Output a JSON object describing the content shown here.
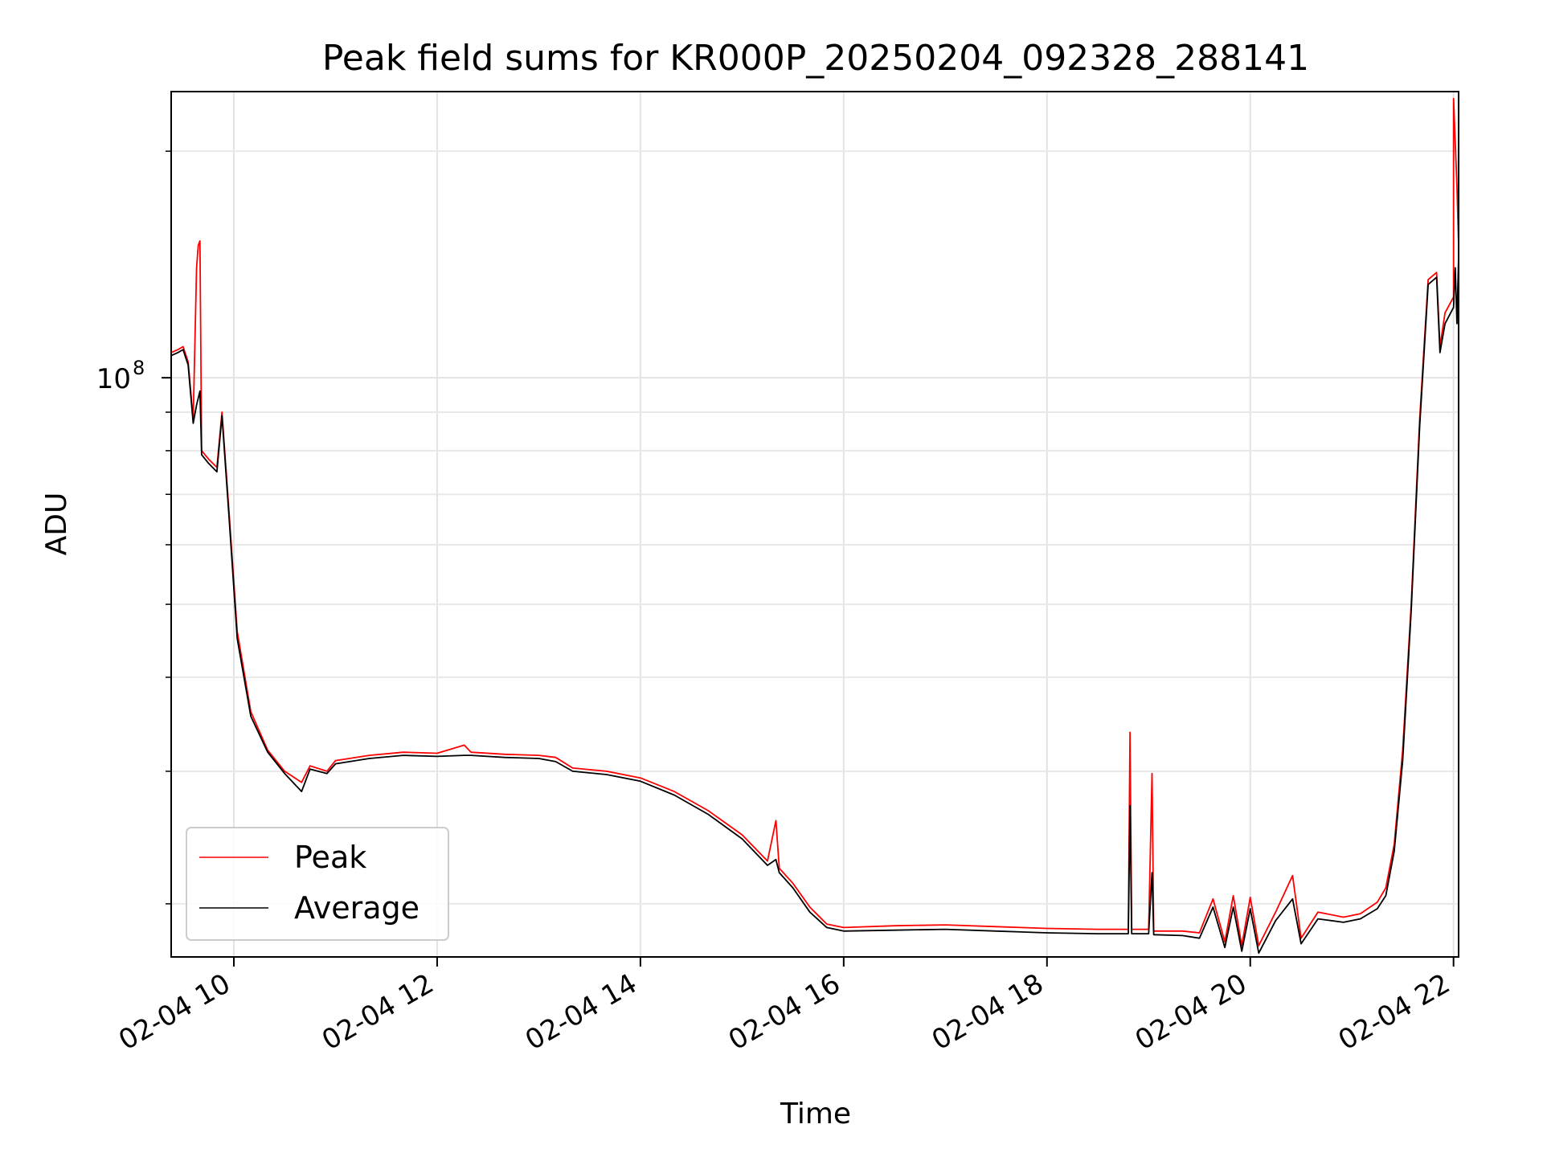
{
  "chart_data": {
    "type": "line",
    "title": "Peak field sums for KR000P_20250204_092328_288141",
    "xlabel": "Time",
    "ylabel": "ADU",
    "x_scale": "time",
    "y_scale": "log",
    "xlim": [
      "2025-02-04 09:23",
      "2025-02-04 22:03"
    ],
    "ylim": [
      17000000,
      240000000
    ],
    "x_ticks": [
      {
        "t": "2025-02-04 10:00",
        "label": "02-04 10"
      },
      {
        "t": "2025-02-04 12:00",
        "label": "02-04 12"
      },
      {
        "t": "2025-02-04 14:00",
        "label": "02-04 14"
      },
      {
        "t": "2025-02-04 16:00",
        "label": "02-04 16"
      },
      {
        "t": "2025-02-04 18:00",
        "label": "02-04 18"
      },
      {
        "t": "2025-02-04 20:00",
        "label": "02-04 20"
      },
      {
        "t": "2025-02-04 22:00",
        "label": "02-04 22"
      }
    ],
    "y_major_ticks": [
      {
        "value": 100000000,
        "label": "10",
        "exponent": "8"
      }
    ],
    "y_minor_ticks": [
      20000000,
      30000000,
      40000000,
      50000000,
      60000000,
      70000000,
      80000000,
      90000000,
      200000000
    ],
    "grid": true,
    "legend": "lower-left",
    "series": [
      {
        "name": "Peak",
        "color": "#ff0000",
        "points": [
          [
            "2025-02-04 09:23",
            108000000
          ],
          [
            "2025-02-04 09:27",
            109000000
          ],
          [
            "2025-02-04 09:30",
            110000000
          ],
          [
            "2025-02-04 09:33",
            105000000
          ],
          [
            "2025-02-04 09:36",
            88000000
          ],
          [
            "2025-02-04 09:38",
            140000000
          ],
          [
            "2025-02-04 09:39",
            150000000
          ],
          [
            "2025-02-04 09:40",
            152000000
          ],
          [
            "2025-02-04 09:41",
            80000000
          ],
          [
            "2025-02-04 09:45",
            78000000
          ],
          [
            "2025-02-04 09:50",
            76000000
          ],
          [
            "2025-02-04 09:53",
            90000000
          ],
          [
            "2025-02-04 09:57",
            67000000
          ],
          [
            "2025-02-04 10:02",
            46000000
          ],
          [
            "2025-02-04 10:10",
            36000000
          ],
          [
            "2025-02-04 10:20",
            32000000
          ],
          [
            "2025-02-04 10:30",
            30000000
          ],
          [
            "2025-02-04 10:40",
            29000000
          ],
          [
            "2025-02-04 10:45",
            30500000
          ],
          [
            "2025-02-04 10:55",
            30000000
          ],
          [
            "2025-02-04 11:00",
            31000000
          ],
          [
            "2025-02-04 11:20",
            31500000
          ],
          [
            "2025-02-04 11:40",
            31800000
          ],
          [
            "2025-02-04 12:00",
            31700000
          ],
          [
            "2025-02-04 12:16",
            32500000
          ],
          [
            "2025-02-04 12:20",
            31800000
          ],
          [
            "2025-02-04 12:40",
            31600000
          ],
          [
            "2025-02-04 13:00",
            31500000
          ],
          [
            "2025-02-04 13:10",
            31300000
          ],
          [
            "2025-02-04 13:20",
            30300000
          ],
          [
            "2025-02-04 13:40",
            30000000
          ],
          [
            "2025-02-04 14:00",
            29400000
          ],
          [
            "2025-02-04 14:20",
            28200000
          ],
          [
            "2025-02-04 14:40",
            26600000
          ],
          [
            "2025-02-04 15:00",
            24700000
          ],
          [
            "2025-02-04 15:15",
            22800000
          ],
          [
            "2025-02-04 15:20",
            25800000
          ],
          [
            "2025-02-04 15:22",
            22300000
          ],
          [
            "2025-02-04 15:30",
            21300000
          ],
          [
            "2025-02-04 15:40",
            19800000
          ],
          [
            "2025-02-04 15:50",
            18800000
          ],
          [
            "2025-02-04 16:00",
            18600000
          ],
          [
            "2025-02-04 16:30",
            18700000
          ],
          [
            "2025-02-04 17:00",
            18750000
          ],
          [
            "2025-02-04 17:30",
            18650000
          ],
          [
            "2025-02-04 18:00",
            18550000
          ],
          [
            "2025-02-04 18:30",
            18500000
          ],
          [
            "2025-02-04 18:48",
            18500000
          ],
          [
            "2025-02-04 18:49",
            33800000
          ],
          [
            "2025-02-04 18:50",
            18500000
          ],
          [
            "2025-02-04 19:00",
            18500000
          ],
          [
            "2025-02-04 19:02",
            29800000
          ],
          [
            "2025-02-04 19:03",
            18400000
          ],
          [
            "2025-02-04 19:20",
            18400000
          ],
          [
            "2025-02-04 19:30",
            18300000
          ],
          [
            "2025-02-04 19:38",
            20300000
          ],
          [
            "2025-02-04 19:45",
            17800000
          ],
          [
            "2025-02-04 19:50",
            20500000
          ],
          [
            "2025-02-04 19:55",
            17600000
          ],
          [
            "2025-02-04 20:00",
            20400000
          ],
          [
            "2025-02-04 20:05",
            17600000
          ],
          [
            "2025-02-04 20:15",
            19500000
          ],
          [
            "2025-02-04 20:25",
            21800000
          ],
          [
            "2025-02-04 20:30",
            18000000
          ],
          [
            "2025-02-04 20:40",
            19500000
          ],
          [
            "2025-02-04 20:55",
            19200000
          ],
          [
            "2025-02-04 21:05",
            19400000
          ],
          [
            "2025-02-04 21:15",
            20100000
          ],
          [
            "2025-02-04 21:20",
            21000000
          ],
          [
            "2025-02-04 21:25",
            24000000
          ],
          [
            "2025-02-04 21:30",
            32000000
          ],
          [
            "2025-02-04 21:35",
            50000000
          ],
          [
            "2025-02-04 21:40",
            88000000
          ],
          [
            "2025-02-04 21:45",
            135000000
          ],
          [
            "2025-02-04 21:50",
            138000000
          ],
          [
            "2025-02-04 21:52",
            110000000
          ],
          [
            "2025-02-04 21:55",
            122000000
          ],
          [
            "2025-02-04 22:00",
            128000000
          ],
          [
            "2025-02-04 22:00",
            235000000
          ],
          [
            "2025-02-04 22:02",
            180000000
          ],
          [
            "2025-02-04 22:03",
            150000000
          ]
        ]
      },
      {
        "name": "Average",
        "color": "#000000",
        "points": [
          [
            "2025-02-04 09:23",
            107000000
          ],
          [
            "2025-02-04 09:27",
            108000000
          ],
          [
            "2025-02-04 09:30",
            109000000
          ],
          [
            "2025-02-04 09:33",
            104000000
          ],
          [
            "2025-02-04 09:36",
            87000000
          ],
          [
            "2025-02-04 09:38",
            92000000
          ],
          [
            "2025-02-04 09:40",
            96000000
          ],
          [
            "2025-02-04 09:41",
            79000000
          ],
          [
            "2025-02-04 09:45",
            77000000
          ],
          [
            "2025-02-04 09:50",
            75000000
          ],
          [
            "2025-02-04 09:53",
            89000000
          ],
          [
            "2025-02-04 09:57",
            66000000
          ],
          [
            "2025-02-04 10:02",
            45000000
          ],
          [
            "2025-02-04 10:10",
            35500000
          ],
          [
            "2025-02-04 10:20",
            31800000
          ],
          [
            "2025-02-04 10:30",
            29800000
          ],
          [
            "2025-02-04 10:40",
            28200000
          ],
          [
            "2025-02-04 10:45",
            30200000
          ],
          [
            "2025-02-04 10:55",
            29800000
          ],
          [
            "2025-02-04 11:00",
            30700000
          ],
          [
            "2025-02-04 11:20",
            31200000
          ],
          [
            "2025-02-04 11:40",
            31500000
          ],
          [
            "2025-02-04 12:00",
            31400000
          ],
          [
            "2025-02-04 12:16",
            31500000
          ],
          [
            "2025-02-04 12:20",
            31500000
          ],
          [
            "2025-02-04 12:40",
            31300000
          ],
          [
            "2025-02-04 13:00",
            31200000
          ],
          [
            "2025-02-04 13:10",
            30900000
          ],
          [
            "2025-02-04 13:20",
            30000000
          ],
          [
            "2025-02-04 13:40",
            29700000
          ],
          [
            "2025-02-04 14:00",
            29100000
          ],
          [
            "2025-02-04 14:20",
            27900000
          ],
          [
            "2025-02-04 14:40",
            26300000
          ],
          [
            "2025-02-04 15:00",
            24400000
          ],
          [
            "2025-02-04 15:15",
            22500000
          ],
          [
            "2025-02-04 15:20",
            22900000
          ],
          [
            "2025-02-04 15:22",
            22000000
          ],
          [
            "2025-02-04 15:30",
            21000000
          ],
          [
            "2025-02-04 15:40",
            19500000
          ],
          [
            "2025-02-04 15:50",
            18600000
          ],
          [
            "2025-02-04 16:00",
            18400000
          ],
          [
            "2025-02-04 16:30",
            18450000
          ],
          [
            "2025-02-04 17:00",
            18500000
          ],
          [
            "2025-02-04 17:30",
            18400000
          ],
          [
            "2025-02-04 18:00",
            18300000
          ],
          [
            "2025-02-04 18:30",
            18250000
          ],
          [
            "2025-02-04 18:48",
            18250000
          ],
          [
            "2025-02-04 18:49",
            27000000
          ],
          [
            "2025-02-04 18:50",
            18250000
          ],
          [
            "2025-02-04 19:00",
            18250000
          ],
          [
            "2025-02-04 19:02",
            22000000
          ],
          [
            "2025-02-04 19:03",
            18200000
          ],
          [
            "2025-02-04 19:20",
            18150000
          ],
          [
            "2025-02-04 19:30",
            18000000
          ],
          [
            "2025-02-04 19:38",
            19800000
          ],
          [
            "2025-02-04 19:45",
            17500000
          ],
          [
            "2025-02-04 19:50",
            19800000
          ],
          [
            "2025-02-04 19:55",
            17300000
          ],
          [
            "2025-02-04 20:00",
            19700000
          ],
          [
            "2025-02-04 20:05",
            17200000
          ],
          [
            "2025-02-04 20:15",
            19000000
          ],
          [
            "2025-02-04 20:25",
            20300000
          ],
          [
            "2025-02-04 20:30",
            17700000
          ],
          [
            "2025-02-04 20:40",
            19100000
          ],
          [
            "2025-02-04 20:55",
            18900000
          ],
          [
            "2025-02-04 21:05",
            19100000
          ],
          [
            "2025-02-04 21:15",
            19700000
          ],
          [
            "2025-02-04 21:20",
            20500000
          ],
          [
            "2025-02-04 21:25",
            23500000
          ],
          [
            "2025-02-04 21:30",
            31000000
          ],
          [
            "2025-02-04 21:35",
            49000000
          ],
          [
            "2025-02-04 21:40",
            86000000
          ],
          [
            "2025-02-04 21:45",
            133000000
          ],
          [
            "2025-02-04 21:50",
            136000000
          ],
          [
            "2025-02-04 21:52",
            108000000
          ],
          [
            "2025-02-04 21:55",
            118000000
          ],
          [
            "2025-02-04 22:00",
            124000000
          ],
          [
            "2025-02-04 22:01",
            140000000
          ],
          [
            "2025-02-04 22:02",
            118000000
          ],
          [
            "2025-02-04 22:03",
            145000000
          ]
        ]
      }
    ]
  }
}
